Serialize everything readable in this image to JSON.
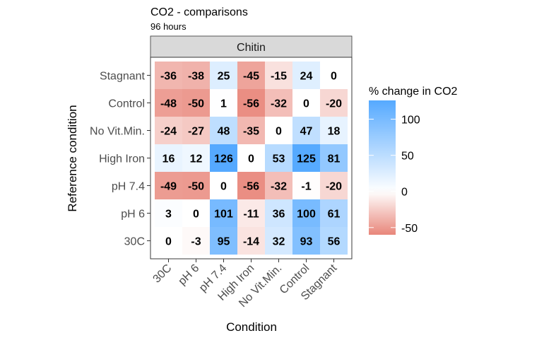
{
  "chart_data": {
    "type": "heatmap",
    "title": "CO2 - comparisons",
    "subtitle": "96 hours",
    "facet_label": "Chitin",
    "xlabel": "Condition",
    "ylabel": "Reference condition",
    "x_categories": [
      "30C",
      "pH 6",
      "pH 7.4",
      "High Iron",
      "No Vit.Min.",
      "Control",
      "Stagnant"
    ],
    "y_categories": [
      "Stagnant",
      "Control",
      "No Vit.Min.",
      "High Iron",
      "pH 7.4",
      "pH 6",
      "30C"
    ],
    "values": [
      [
        -36,
        -38,
        25,
        -45,
        -15,
        24,
        0
      ],
      [
        -48,
        -50,
        1,
        -56,
        -32,
        0,
        -20
      ],
      [
        -24,
        -27,
        48,
        -35,
        0,
        47,
        18
      ],
      [
        16,
        12,
        126,
        0,
        53,
        125,
        81
      ],
      [
        -49,
        -50,
        0,
        -56,
        -32,
        -1,
        -20
      ],
      [
        3,
        0,
        101,
        -11,
        36,
        100,
        61
      ],
      [
        0,
        -3,
        95,
        -14,
        32,
        93,
        56
      ]
    ],
    "legend": {
      "title": "% change in CO2",
      "ticks": [
        100,
        50,
        0,
        -50
      ],
      "range": [
        -60,
        126
      ],
      "colors": {
        "low": "#e8867a",
        "mid": "#ffffff",
        "high": "#55a9ff"
      },
      "placement": "right"
    }
  }
}
